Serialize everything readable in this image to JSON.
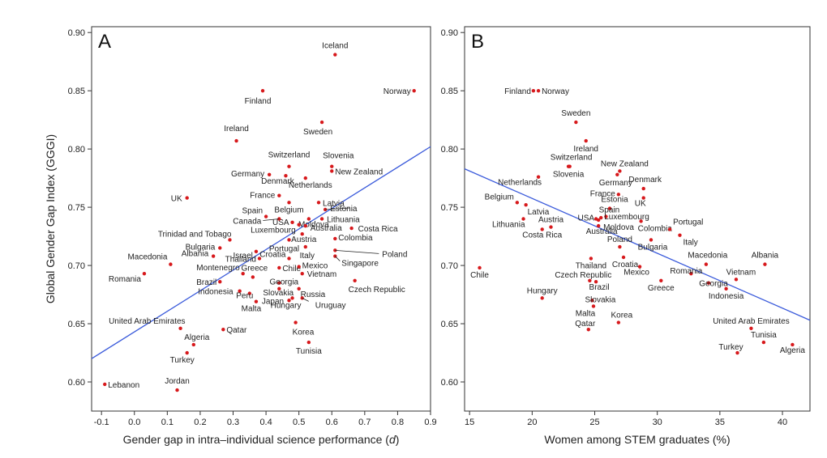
{
  "chart_data": [
    {
      "panel": "A",
      "type": "scatter",
      "xlabel_main": "Gender gap in intra–individual science performance (",
      "xlabel_sym": "d",
      "xlabel_end": ")",
      "ylabel": "Global Gender Gap Index (GGGI)",
      "xlim": [
        -0.13,
        0.9
      ],
      "ylim": [
        0.575,
        0.905
      ],
      "xticks": [
        -0.1,
        0,
        0.1,
        0.2,
        0.3,
        0.4,
        0.5,
        0.6,
        0.7,
        0.8,
        0.9
      ],
      "xtick_labels": [
        "-0.1",
        "0.0",
        "0.1",
        "0.2",
        "0.3",
        "0.4",
        "0.5",
        "0.6",
        "0.7",
        "0.8",
        "0.9"
      ],
      "yticks": [
        0.6,
        0.65,
        0.7,
        0.75,
        0.8,
        0.85,
        0.9
      ],
      "ytick_labels": [
        "0.60",
        "0.65",
        "0.70",
        "0.75",
        "0.80",
        "0.85",
        "0.90"
      ],
      "trend": [
        [
          -0.13,
          0.62
        ],
        [
          0.9,
          0.802
        ]
      ],
      "points": [
        {
          "name": "Iceland",
          "x": 0.61,
          "y": 0.881
        },
        {
          "name": "Norway",
          "x": 0.85,
          "y": 0.85
        },
        {
          "name": "Finland",
          "x": 0.39,
          "y": 0.85
        },
        {
          "name": "Sweden",
          "x": 0.57,
          "y": 0.823
        },
        {
          "name": "Ireland",
          "x": 0.31,
          "y": 0.807
        },
        {
          "name": "Switzerland",
          "x": 0.47,
          "y": 0.785
        },
        {
          "name": "Slovenia",
          "x": 0.6,
          "y": 0.785
        },
        {
          "name": "Germany",
          "x": 0.41,
          "y": 0.778
        },
        {
          "name": "New Zealand",
          "x": 0.6,
          "y": 0.781
        },
        {
          "name": "Denmark",
          "x": 0.46,
          "y": 0.777
        },
        {
          "name": "Netherlands",
          "x": 0.52,
          "y": 0.775
        },
        {
          "name": "France",
          "x": 0.44,
          "y": 0.76
        },
        {
          "name": "Belgium",
          "x": 0.47,
          "y": 0.754
        },
        {
          "name": "Latvia",
          "x": 0.56,
          "y": 0.754
        },
        {
          "name": "Estonia",
          "x": 0.58,
          "y": 0.748
        },
        {
          "name": "UK",
          "x": 0.16,
          "y": 0.758
        },
        {
          "name": "Spain",
          "x": 0.4,
          "y": 0.742
        },
        {
          "name": "USA",
          "x": 0.48,
          "y": 0.737
        },
        {
          "name": "Moldova",
          "x": 0.53,
          "y": 0.74
        },
        {
          "name": "Lithuania",
          "x": 0.57,
          "y": 0.74
        },
        {
          "name": "Canada",
          "x": 0.44,
          "y": 0.74
        },
        {
          "name": "Luxembourg",
          "x": 0.5,
          "y": 0.735
        },
        {
          "name": "Australia",
          "x": 0.52,
          "y": 0.734
        },
        {
          "name": "Costa Rica",
          "x": 0.66,
          "y": 0.732
        },
        {
          "name": "Austria",
          "x": 0.51,
          "y": 0.727
        },
        {
          "name": "Trinidad and Tobago",
          "x": 0.29,
          "y": 0.722
        },
        {
          "name": "Portugal",
          "x": 0.47,
          "y": 0.722
        },
        {
          "name": "Colombia",
          "x": 0.61,
          "y": 0.723
        },
        {
          "name": "Bulgaria",
          "x": 0.26,
          "y": 0.715
        },
        {
          "name": "Israel",
          "x": 0.37,
          "y": 0.712
        },
        {
          "name": "Italy",
          "x": 0.52,
          "y": 0.716
        },
        {
          "name": "Poland",
          "x": 0.61,
          "y": 0.713
        },
        {
          "name": "Albania",
          "x": 0.24,
          "y": 0.708
        },
        {
          "name": "Thailand",
          "x": 0.38,
          "y": 0.706
        },
        {
          "name": "Croatia",
          "x": 0.47,
          "y": 0.706
        },
        {
          "name": "Singapore",
          "x": 0.61,
          "y": 0.708
        },
        {
          "name": "Macedonia",
          "x": 0.11,
          "y": 0.701
        },
        {
          "name": "Chile",
          "x": 0.44,
          "y": 0.698
        },
        {
          "name": "Mexico",
          "x": 0.5,
          "y": 0.699
        },
        {
          "name": "Romania",
          "x": 0.03,
          "y": 0.693
        },
        {
          "name": "Montenegro",
          "x": 0.33,
          "y": 0.693
        },
        {
          "name": "Greece",
          "x": 0.36,
          "y": 0.69
        },
        {
          "name": "Vietnam",
          "x": 0.51,
          "y": 0.693
        },
        {
          "name": "Georgia",
          "x": 0.44,
          "y": 0.685
        },
        {
          "name": "Czech Republic",
          "x": 0.67,
          "y": 0.687
        },
        {
          "name": "Brazil",
          "x": 0.26,
          "y": 0.686
        },
        {
          "name": "Slovakia",
          "x": 0.44,
          "y": 0.68
        },
        {
          "name": "Indonesia",
          "x": 0.32,
          "y": 0.678
        },
        {
          "name": "Russia",
          "x": 0.5,
          "y": 0.68
        },
        {
          "name": "Peru",
          "x": 0.35,
          "y": 0.676
        },
        {
          "name": "Hungary",
          "x": 0.48,
          "y": 0.672
        },
        {
          "name": "Uruguay",
          "x": 0.51,
          "y": 0.672
        },
        {
          "name": "Malta",
          "x": 0.37,
          "y": 0.669
        },
        {
          "name": "Japan",
          "x": 0.47,
          "y": 0.67
        },
        {
          "name": "United Arab Emirates",
          "x": 0.14,
          "y": 0.646
        },
        {
          "name": "Qatar",
          "x": 0.27,
          "y": 0.645
        },
        {
          "name": "Korea",
          "x": 0.49,
          "y": 0.651
        },
        {
          "name": "Algeria",
          "x": 0.18,
          "y": 0.632
        },
        {
          "name": "Tunisia",
          "x": 0.53,
          "y": 0.634
        },
        {
          "name": "Turkey",
          "x": 0.16,
          "y": 0.625
        },
        {
          "name": "Lebanon",
          "x": -0.09,
          "y": 0.598
        },
        {
          "name": "Jordan",
          "x": 0.13,
          "y": 0.593
        }
      ]
    },
    {
      "panel": "B",
      "type": "scatter",
      "xlabel": "Women among STEM graduates (%)",
      "ylabel": "",
      "xlim": [
        14.6,
        42.2
      ],
      "ylim": [
        0.575,
        0.905
      ],
      "xticks": [
        15,
        20,
        25,
        30,
        35,
        40
      ],
      "xtick_labels": [
        "15",
        "20",
        "25",
        "30",
        "35",
        "40"
      ],
      "yticks": [
        0.6,
        0.65,
        0.7,
        0.75,
        0.8,
        0.85,
        0.9
      ],
      "ytick_labels": [
        "0.60",
        "0.65",
        "0.70",
        "0.75",
        "0.80",
        "0.85",
        "0.90"
      ],
      "trend": [
        [
          14.6,
          0.783
        ],
        [
          42.2,
          0.653
        ]
      ],
      "points": [
        {
          "name": "Finland",
          "x": 20.1,
          "y": 0.85
        },
        {
          "name": "Norway",
          "x": 20.5,
          "y": 0.85
        },
        {
          "name": "Sweden",
          "x": 23.5,
          "y": 0.823
        },
        {
          "name": "Ireland",
          "x": 24.3,
          "y": 0.807
        },
        {
          "name": "Switzerland",
          "x": 23.0,
          "y": 0.785
        },
        {
          "name": "Slovenia",
          "x": 22.9,
          "y": 0.785
        },
        {
          "name": "New Zealand",
          "x": 27.0,
          "y": 0.781
        },
        {
          "name": "Germany",
          "x": 26.8,
          "y": 0.778
        },
        {
          "name": "Denmark",
          "x": 28.9,
          "y": 0.766
        },
        {
          "name": "Netherlands",
          "x": 20.5,
          "y": 0.776
        },
        {
          "name": "France",
          "x": 26.9,
          "y": 0.761
        },
        {
          "name": "UK",
          "x": 28.9,
          "y": 0.758
        },
        {
          "name": "Belgium",
          "x": 18.8,
          "y": 0.754
        },
        {
          "name": "Latvia",
          "x": 19.5,
          "y": 0.752
        },
        {
          "name": "Estonia",
          "x": 26.2,
          "y": 0.749
        },
        {
          "name": "Spain",
          "x": 25.9,
          "y": 0.742
        },
        {
          "name": "USA",
          "x": 25.1,
          "y": 0.74
        },
        {
          "name": "Luxembourg",
          "x": 25.5,
          "y": 0.741
        },
        {
          "name": "Lithuania",
          "x": 19.3,
          "y": 0.74
        },
        {
          "name": "Austria",
          "x": 21.5,
          "y": 0.733
        },
        {
          "name": "Moldova",
          "x": 25.3,
          "y": 0.739
        },
        {
          "name": "Colombia",
          "x": 28.7,
          "y": 0.738
        },
        {
          "name": "Portugal",
          "x": 31.0,
          "y": 0.731
        },
        {
          "name": "Costa Rica",
          "x": 20.8,
          "y": 0.731
        },
        {
          "name": "Australia",
          "x": 25.3,
          "y": 0.734
        },
        {
          "name": "Italy",
          "x": 31.8,
          "y": 0.726
        },
        {
          "name": "Bulgaria",
          "x": 29.5,
          "y": 0.722
        },
        {
          "name": "Poland",
          "x": 27.0,
          "y": 0.716
        },
        {
          "name": "Croatia",
          "x": 27.3,
          "y": 0.707
        },
        {
          "name": "Thailand",
          "x": 24.7,
          "y": 0.706
        },
        {
          "name": "Albania",
          "x": 38.6,
          "y": 0.701
        },
        {
          "name": "Macedonia",
          "x": 33.9,
          "y": 0.701
        },
        {
          "name": "Chile",
          "x": 15.8,
          "y": 0.698
        },
        {
          "name": "Mexico",
          "x": 28.6,
          "y": 0.699
        },
        {
          "name": "Romania",
          "x": 32.7,
          "y": 0.693
        },
        {
          "name": "Vietnam",
          "x": 36.3,
          "y": 0.688
        },
        {
          "name": "Czech Republic",
          "x": 24.6,
          "y": 0.687
        },
        {
          "name": "Brazil",
          "x": 25.1,
          "y": 0.686
        },
        {
          "name": "Greece",
          "x": 30.3,
          "y": 0.687
        },
        {
          "name": "Georgia",
          "x": 34.1,
          "y": 0.685
        },
        {
          "name": "Indonesia",
          "x": 35.5,
          "y": 0.68
        },
        {
          "name": "Hungary",
          "x": 20.8,
          "y": 0.672
        },
        {
          "name": "Slovakia",
          "x": 24.8,
          "y": 0.67
        },
        {
          "name": "Malta",
          "x": 24.9,
          "y": 0.665
        },
        {
          "name": "Korea",
          "x": 26.9,
          "y": 0.651
        },
        {
          "name": "United Arab Emirates",
          "x": 37.5,
          "y": 0.646
        },
        {
          "name": "Qatar",
          "x": 24.5,
          "y": 0.645
        },
        {
          "name": "Tunisia",
          "x": 38.5,
          "y": 0.634
        },
        {
          "name": "Algeria",
          "x": 40.8,
          "y": 0.632
        },
        {
          "name": "Turkey",
          "x": 36.4,
          "y": 0.625
        }
      ]
    }
  ]
}
